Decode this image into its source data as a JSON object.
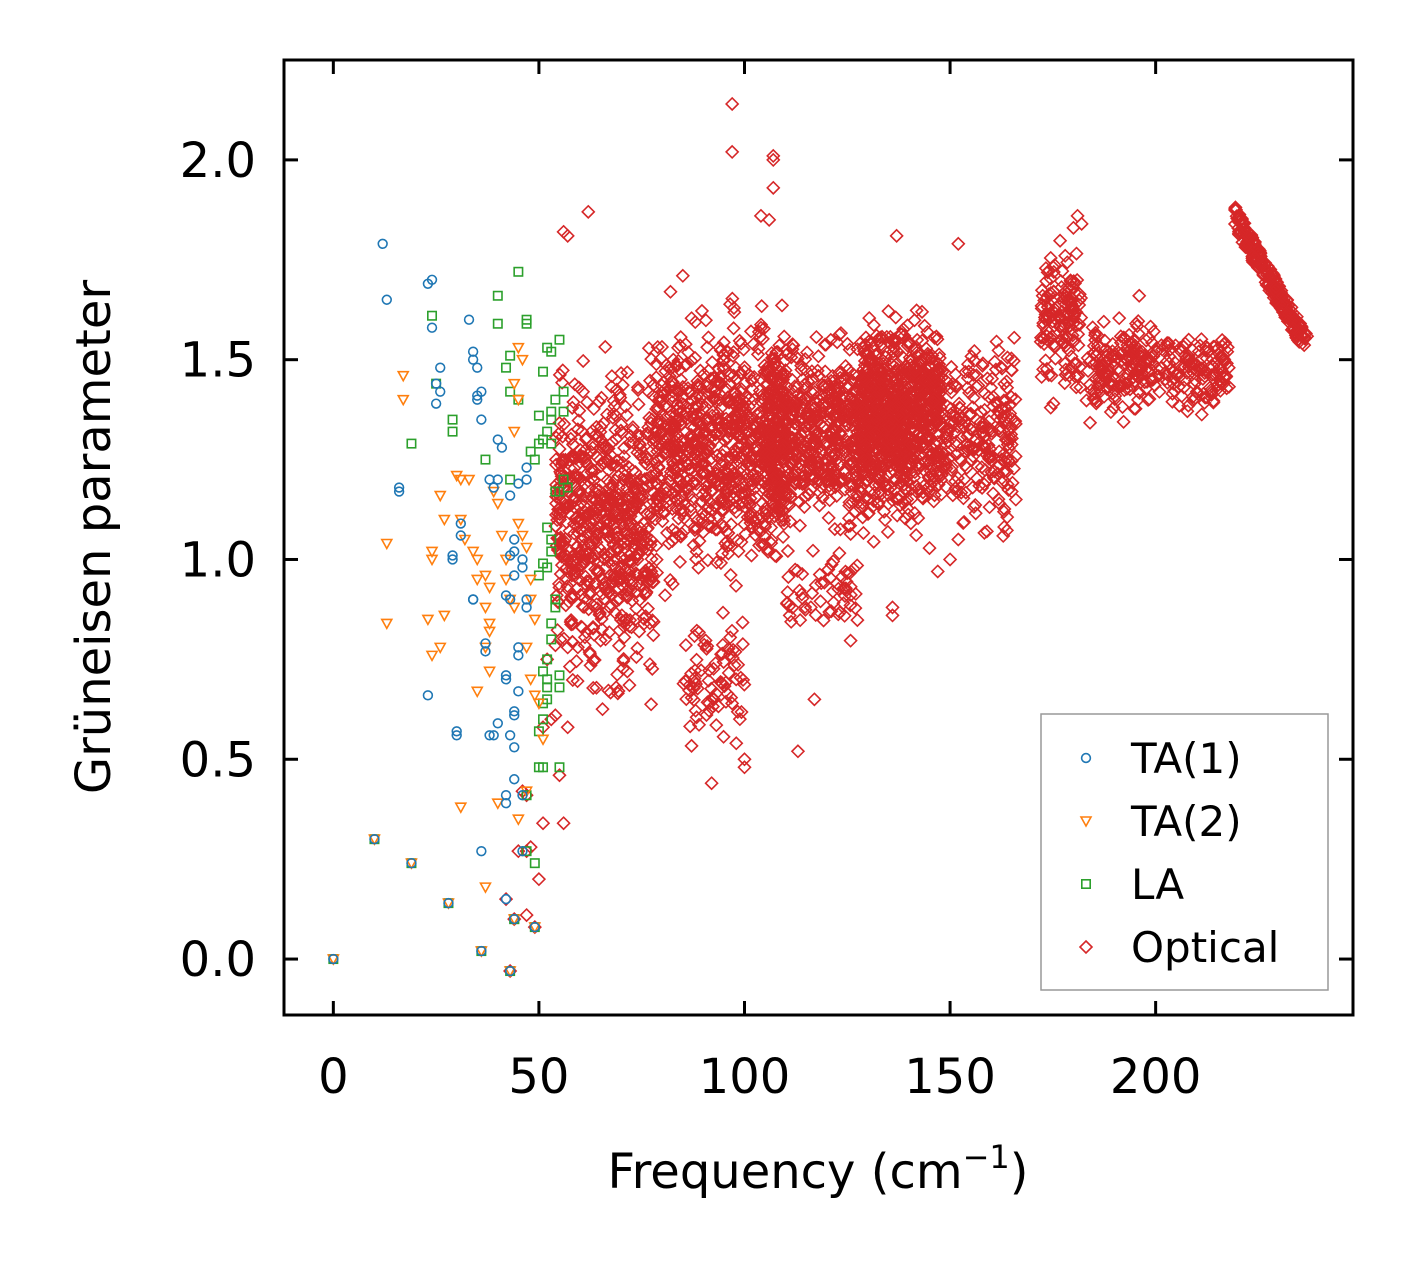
{
  "chart_data": {
    "type": "scatter",
    "title": "",
    "xlabel": "Frequency (cm",
    "xlabel_superscript": "−1",
    "xlabel_close": ")",
    "ylabel": "Grüneisen parameter",
    "xlim": [
      -12,
      248
    ],
    "ylim": [
      -0.14,
      2.25
    ],
    "x_ticks": [
      0,
      50,
      100,
      150,
      200
    ],
    "x_tick_labels": [
      "0",
      "50",
      "100",
      "150",
      "200"
    ],
    "y_ticks": [
      0.0,
      0.5,
      1.0,
      1.5,
      2.0
    ],
    "y_tick_labels": [
      "0.0",
      "0.5",
      "1.0",
      "1.5",
      "2.0"
    ],
    "grid": false,
    "legend_position": "bottom-right",
    "series": [
      {
        "name": "TA(1)",
        "marker": "circle",
        "color": "#1f77b4",
        "points": [
          [
            0,
            0.0
          ],
          [
            10,
            0.3
          ],
          [
            19,
            0.24
          ],
          [
            28,
            0.14
          ],
          [
            36,
            0.02
          ],
          [
            43,
            -0.03
          ],
          [
            44,
            0.1
          ],
          [
            49,
            0.08
          ],
          [
            12,
            1.79
          ],
          [
            13,
            1.65
          ],
          [
            23,
            1.69
          ],
          [
            24,
            1.7
          ],
          [
            24,
            1.58
          ],
          [
            25,
            1.44
          ],
          [
            25,
            1.39
          ],
          [
            26,
            1.42
          ],
          [
            26,
            1.48
          ],
          [
            33,
            1.6
          ],
          [
            34,
            1.52
          ],
          [
            34,
            1.5
          ],
          [
            35,
            1.48
          ],
          [
            35,
            1.41
          ],
          [
            35,
            1.4
          ],
          [
            36,
            1.42
          ],
          [
            36,
            1.35
          ],
          [
            40,
            1.3
          ],
          [
            41,
            1.28
          ],
          [
            38,
            1.2
          ],
          [
            39,
            1.18
          ],
          [
            40,
            1.2
          ],
          [
            43,
            1.16
          ],
          [
            45,
            1.19
          ],
          [
            47,
            1.23
          ],
          [
            47,
            1.2
          ],
          [
            16,
            1.17
          ],
          [
            16,
            1.18
          ],
          [
            31,
            1.09
          ],
          [
            31,
            1.06
          ],
          [
            29,
            1.01
          ],
          [
            29,
            1.0
          ],
          [
            34,
            0.9
          ],
          [
            34,
            0.9
          ],
          [
            37,
            0.79
          ],
          [
            37,
            0.77
          ],
          [
            42,
            0.91
          ],
          [
            43,
            0.9
          ],
          [
            44,
            1.05
          ],
          [
            44,
            1.02
          ],
          [
            43,
            1.01
          ],
          [
            46,
            1.0
          ],
          [
            46,
            0.98
          ],
          [
            44,
            0.96
          ],
          [
            47,
            0.9
          ],
          [
            47,
            0.88
          ],
          [
            45,
            0.78
          ],
          [
            45,
            0.76
          ],
          [
            42,
            0.7
          ],
          [
            42,
            0.71
          ],
          [
            45,
            0.67
          ],
          [
            44,
            0.62
          ],
          [
            44,
            0.61
          ],
          [
            43,
            0.56
          ],
          [
            44,
            0.53
          ],
          [
            40,
            0.59
          ],
          [
            39,
            0.56
          ],
          [
            38,
            0.56
          ],
          [
            30,
            0.57
          ],
          [
            30,
            0.56
          ],
          [
            23,
            0.66
          ],
          [
            42,
            0.39
          ],
          [
            42,
            0.41
          ],
          [
            44,
            0.45
          ],
          [
            46,
            0.41
          ],
          [
            36,
            0.27
          ],
          [
            46,
            0.27
          ],
          [
            42,
            0.15
          ]
        ]
      },
      {
        "name": "TA(2)",
        "marker": "triangle-down",
        "color": "#ff7f0e",
        "points": [
          [
            0,
            0.0
          ],
          [
            10,
            0.3
          ],
          [
            19,
            0.24
          ],
          [
            28,
            0.14
          ],
          [
            36,
            0.02
          ],
          [
            43,
            -0.03
          ],
          [
            44,
            0.1
          ],
          [
            49,
            0.08
          ],
          [
            17,
            1.46
          ],
          [
            17,
            1.4
          ],
          [
            13,
            1.04
          ],
          [
            13,
            0.84
          ],
          [
            24,
            1.02
          ],
          [
            24,
            1.0
          ],
          [
            23,
            0.85
          ],
          [
            24,
            0.76
          ],
          [
            26,
            0.78
          ],
          [
            27,
            0.86
          ],
          [
            27,
            1.1
          ],
          [
            26,
            1.16
          ],
          [
            30,
            1.21
          ],
          [
            31,
            1.2
          ],
          [
            33,
            1.2
          ],
          [
            31,
            1.1
          ],
          [
            32,
            1.05
          ],
          [
            34,
            1.02
          ],
          [
            35,
            1.0
          ],
          [
            35,
            0.95
          ],
          [
            37,
            0.96
          ],
          [
            38,
            0.93
          ],
          [
            37,
            0.88
          ],
          [
            38,
            0.84
          ],
          [
            38,
            0.82
          ],
          [
            37,
            0.78
          ],
          [
            38,
            0.72
          ],
          [
            39,
            1.17
          ],
          [
            40,
            1.14
          ],
          [
            41,
            1.06
          ],
          [
            42,
            1.0
          ],
          [
            42,
            0.95
          ],
          [
            43,
            0.9
          ],
          [
            44,
            0.88
          ],
          [
            45,
            1.53
          ],
          [
            46,
            1.5
          ],
          [
            44,
            1.44
          ],
          [
            45,
            1.4
          ],
          [
            44,
            1.32
          ],
          [
            45,
            1.09
          ],
          [
            46,
            1.06
          ],
          [
            47,
            1.03
          ],
          [
            48,
            0.95
          ],
          [
            48,
            0.9
          ],
          [
            49,
            0.85
          ],
          [
            47,
            0.78
          ],
          [
            48,
            0.7
          ],
          [
            49,
            0.66
          ],
          [
            50,
            0.64
          ],
          [
            51,
            0.55
          ],
          [
            35,
            0.67
          ],
          [
            31,
            0.38
          ],
          [
            37,
            0.18
          ],
          [
            40,
            0.39
          ],
          [
            45,
            0.35
          ],
          [
            47,
            0.42
          ]
        ]
      },
      {
        "name": "LA",
        "marker": "square",
        "color": "#2ca02c",
        "points": [
          [
            0,
            0.0
          ],
          [
            10,
            0.3
          ],
          [
            19,
            0.24
          ],
          [
            28,
            0.14
          ],
          [
            36,
            0.02
          ],
          [
            43,
            -0.03
          ],
          [
            44,
            0.1
          ],
          [
            49,
            0.08
          ],
          [
            19,
            1.29
          ],
          [
            24,
            1.61
          ],
          [
            25,
            1.44
          ],
          [
            29,
            1.35
          ],
          [
            29,
            1.32
          ],
          [
            40,
            1.66
          ],
          [
            40,
            1.59
          ],
          [
            45,
            1.72
          ],
          [
            47,
            1.6
          ],
          [
            47,
            1.59
          ],
          [
            43,
            1.51
          ],
          [
            42,
            1.48
          ],
          [
            43,
            1.42
          ],
          [
            45,
            1.4
          ],
          [
            37,
            1.25
          ],
          [
            43,
            1.2
          ],
          [
            48,
            1.27
          ],
          [
            49,
            1.25
          ],
          [
            50,
            1.29
          ],
          [
            51,
            1.3
          ],
          [
            52,
            1.32
          ],
          [
            53,
            1.29
          ],
          [
            53,
            1.35
          ],
          [
            50,
            1.36
          ],
          [
            53,
            1.37
          ],
          [
            54,
            1.4
          ],
          [
            51,
            1.47
          ],
          [
            52,
            1.53
          ],
          [
            53,
            1.52
          ],
          [
            55,
            1.55
          ],
          [
            56,
            1.42
          ],
          [
            56,
            1.37
          ],
          [
            54,
            1.17
          ],
          [
            55,
            1.17
          ],
          [
            57,
            1.18
          ],
          [
            56,
            1.2
          ],
          [
            52,
            1.08
          ],
          [
            53,
            1.05
          ],
          [
            53,
            1.02
          ],
          [
            52,
            0.98
          ],
          [
            51,
            0.99
          ],
          [
            50,
            0.96
          ],
          [
            54,
            0.9
          ],
          [
            54,
            0.88
          ],
          [
            53,
            0.84
          ],
          [
            53,
            0.8
          ],
          [
            52,
            0.75
          ],
          [
            51,
            0.72
          ],
          [
            52,
            0.7
          ],
          [
            52,
            0.68
          ],
          [
            55,
            0.71
          ],
          [
            55,
            0.68
          ],
          [
            52,
            0.65
          ],
          [
            51,
            0.6
          ],
          [
            50,
            0.57
          ],
          [
            50,
            0.48
          ],
          [
            51,
            0.48
          ],
          [
            55,
            0.48
          ],
          [
            49,
            0.24
          ],
          [
            51,
            0.64
          ],
          [
            47,
            0.27
          ],
          [
            47,
            0.41
          ],
          [
            44,
            0.1
          ]
        ]
      },
      {
        "name": "Optical",
        "marker": "diamond",
        "color": "#d62728",
        "gen": {
          "seed": 7,
          "clouds": [
            {
              "xmin": 54,
              "xmax": 78,
              "ymin": 0.58,
              "ymax": 1.62,
              "n": 700
            },
            {
              "xmin": 78,
              "xmax": 110,
              "ymin": 0.85,
              "ymax": 1.7,
              "n": 900
            },
            {
              "xmin": 85,
              "xmax": 100,
              "ymin": 0.5,
              "ymax": 0.9,
              "n": 80
            },
            {
              "xmin": 105,
              "xmax": 140,
              "ymin": 1.0,
              "ymax": 1.62,
              "n": 900
            },
            {
              "xmin": 110,
              "xmax": 128,
              "ymin": 0.75,
              "ymax": 1.05,
              "n": 60
            },
            {
              "xmin": 128,
              "xmax": 148,
              "ymin": 1.1,
              "ymax": 1.68,
              "n": 500
            },
            {
              "xmin": 140,
              "xmax": 166,
              "ymin": 1.0,
              "ymax": 1.6,
              "n": 350
            },
            {
              "xmin": 172,
              "xmax": 182,
              "ymin": 1.35,
              "ymax": 1.84,
              "n": 150
            },
            {
              "xmin": 183,
              "xmax": 198,
              "ymin": 1.32,
              "ymax": 1.65,
              "n": 160
            },
            {
              "xmin": 198,
              "xmax": 218,
              "ymin": 1.32,
              "ymax": 1.62,
              "n": 160
            }
          ],
          "band": {
            "x0": 219,
            "y0": 1.86,
            "x1": 237,
            "y1": 1.53,
            "n": 260,
            "spread": 0.03
          }
        },
        "points": [
          [
            97,
            2.14
          ],
          [
            97,
            2.02
          ],
          [
            107,
            2.01
          ],
          [
            107,
            2.0
          ],
          [
            107,
            1.93
          ],
          [
            106,
            1.85
          ],
          [
            104,
            1.86
          ],
          [
            62,
            1.87
          ],
          [
            56,
            1.82
          ],
          [
            57,
            1.81
          ],
          [
            85,
            1.71
          ],
          [
            82,
            1.67
          ],
          [
            137,
            1.81
          ],
          [
            152,
            1.79
          ],
          [
            181,
            1.86
          ],
          [
            182,
            1.84
          ],
          [
            180,
            1.83
          ],
          [
            178,
            1.76
          ],
          [
            196,
            1.66
          ],
          [
            113,
            0.52
          ],
          [
            92,
            0.44
          ],
          [
            100,
            0.48
          ],
          [
            100,
            0.5
          ],
          [
            98,
            0.54
          ],
          [
            117,
            0.65
          ],
          [
            111,
            0.86
          ],
          [
            46,
            0.42
          ],
          [
            47,
            0.41
          ],
          [
            45,
            0.27
          ],
          [
            47,
            0.27
          ],
          [
            47,
            0.11
          ],
          [
            44,
            0.1
          ],
          [
            49,
            0.08
          ],
          [
            50,
            0.2
          ],
          [
            51,
            0.34
          ],
          [
            56,
            0.34
          ],
          [
            55,
            0.46
          ],
          [
            51,
            0.58
          ],
          [
            53,
            0.6
          ],
          [
            54,
            0.61
          ],
          [
            57,
            0.58
          ],
          [
            57,
            0.78
          ],
          [
            43,
            -0.03
          ],
          [
            42,
            0.15
          ],
          [
            48,
            0.28
          ],
          [
            52,
            0.75
          ],
          [
            55,
            0.93
          ],
          [
            58,
            0.96
          ],
          [
            56,
            1.12
          ],
          [
            58,
            1.16
          ],
          [
            150,
            1.0
          ],
          [
            152,
            1.05
          ],
          [
            147,
            0.97
          ],
          [
            136,
            0.86
          ],
          [
            136,
            0.88
          ],
          [
            162,
            1.14
          ],
          [
            165,
            1.17
          ],
          [
            166,
            1.15
          ]
        ]
      }
    ]
  }
}
